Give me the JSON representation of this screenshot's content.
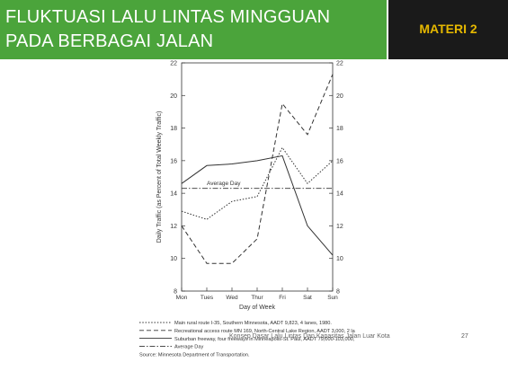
{
  "slide": {
    "title_line1": "FLUKTUASI LALU LINTAS MINGGUAN",
    "title_line2": "PADA BERBAGAI JALAN",
    "materi": "MATERI 2",
    "footer": "Konsep Dasar Lalu Lintas Dan Kapasitas Jalan Luar Kota",
    "page": "27",
    "colors": {
      "title_bg": "#4ba43b",
      "materi_bg": "#1a1a1a",
      "materi_text": "#e6b800"
    }
  },
  "chart_data": {
    "type": "line",
    "xlabel": "Day of Week",
    "ylabel": "Daily Traffic (as Percent of Total Weekly Traffic)",
    "categories": [
      "Mon",
      "Tues",
      "Wed",
      "Thur",
      "Fri",
      "Sat",
      "Sun"
    ],
    "ylim": [
      8,
      22
    ],
    "yticks": [
      "8",
      "10",
      "12",
      "14",
      "16",
      "18",
      "20",
      "22"
    ],
    "series": [
      {
        "name": "Main rural route I-35, Southern Minnesota, AADT 9,823, 4 lanes, 1980.",
        "style": "dotted",
        "values": [
          12.9,
          12.4,
          13.5,
          13.8,
          16.8,
          14.6,
          16.0
        ]
      },
      {
        "name": "Recreational access route MN 169, North-Central Lake Region, AADT 3,000, 2 lanes, 1981.",
        "style": "dashed",
        "values": [
          12.0,
          9.7,
          9.7,
          11.2,
          19.5,
          17.6,
          21.3
        ]
      },
      {
        "name": "Suburban freeway, four freeways in Minneapolis-St. Paul, AADT 79,000-103,000, 6-8 lanes, 1982.",
        "style": "solid",
        "values": [
          14.6,
          15.7,
          15.8,
          16.0,
          16.3,
          12.0,
          10.2
        ]
      }
    ],
    "reference": {
      "name": "Average Day",
      "value": 14.3,
      "style": "dashdot"
    },
    "source": "Source: Minnesota Department of Transportation."
  }
}
